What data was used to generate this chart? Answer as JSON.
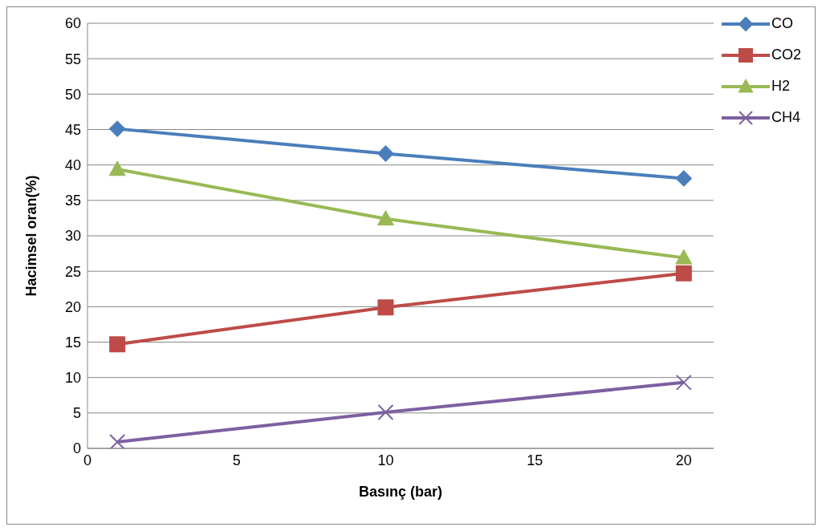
{
  "chart_data": {
    "type": "line",
    "xlabel": "Basınç (bar)",
    "ylabel": "Hacimsel oran(%)",
    "x": [
      1,
      10,
      20
    ],
    "series": [
      {
        "name": "CO",
        "color": "#4a7ebb",
        "values": [
          45.1,
          41.6,
          38.1
        ],
        "marker": "diamond"
      },
      {
        "name": "CO2",
        "color": "#be4b48",
        "values": [
          14.7,
          19.9,
          24.7
        ],
        "marker": "square"
      },
      {
        "name": "H2",
        "color": "#98b954",
        "values": [
          39.4,
          32.4,
          26.9
        ],
        "marker": "triangle"
      },
      {
        "name": "CH4",
        "color": "#7d60a0",
        "values": [
          0.9,
          5.1,
          9.3
        ],
        "marker": "cross"
      }
    ],
    "xlim": [
      0,
      21
    ],
    "xticks": [
      0,
      5,
      10,
      15,
      20
    ],
    "ylim": [
      0,
      60
    ],
    "yticks": [
      0,
      5,
      10,
      15,
      20,
      25,
      30,
      35,
      40,
      45,
      50,
      55,
      60
    ],
    "grid": "y",
    "legend": "top right"
  }
}
